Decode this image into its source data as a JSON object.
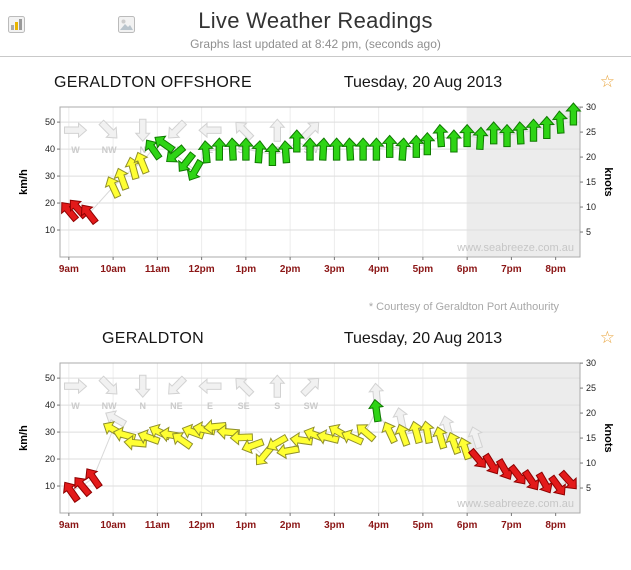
{
  "header": {
    "title": "Live Weather Readings",
    "subtitle": "Graphs last updated at 8:42 pm, (seconds ago)"
  },
  "icons": {
    "favorite_star": "☆",
    "mini_icon_1": "mini-chart-icon",
    "mini_icon_2": "mini-photo-icon"
  },
  "notes": {
    "courtesy": "* Courtesy of Geraldton Port Authourity"
  },
  "style": {
    "accent_star": "#e9a53f",
    "shade": "#ececec",
    "grid_h": "#dedede",
    "grid_v": "#ececec",
    "border": "#ababab",
    "trend_line": "#d9d9d9",
    "tick": "#777777",
    "arrow_colors": {
      "red": {
        "fill": "#e31a1a",
        "stroke": "#8f0000"
      },
      "yellow": {
        "fill": "#ffff33",
        "stroke": "#90902a"
      },
      "green": {
        "fill": "#2ed415",
        "stroke": "#0f7a00"
      },
      "ghost": {
        "fill": "#f1f1f1",
        "stroke": "#d2d2d2"
      }
    }
  },
  "chart_data": [
    {
      "type": "scatter",
      "subtype": "wind-speed-direction-arrows",
      "title": "GERALDTON OFFSHORE",
      "date": "Tuesday, 20 Aug 2013",
      "ylabel_left": "km/h",
      "ylabel_right": "knots",
      "ylim_kmh": [
        0,
        55.6
      ],
      "y_ticks_kmh": [
        10,
        20,
        30,
        40,
        50
      ],
      "y_ticks_knots": [
        5,
        10,
        15,
        20,
        25,
        30
      ],
      "xlim": [
        8.8,
        20.55
      ],
      "x_ticks": [
        [
          9,
          "9am"
        ],
        [
          10,
          "10am"
        ],
        [
          11,
          "11am"
        ],
        [
          12,
          "12pm"
        ],
        [
          13,
          "1pm"
        ],
        [
          14,
          "2pm"
        ],
        [
          15,
          "3pm"
        ],
        [
          16,
          "4pm"
        ],
        [
          17,
          "5pm"
        ],
        [
          18,
          "6pm"
        ],
        [
          19,
          "7pm"
        ],
        [
          20,
          "8pm"
        ]
      ],
      "shaded_from": 18,
      "legend_kmh": 47,
      "compass_legend_format": [
        "direction_label",
        "hour",
        "arrow_rotation_deg"
      ],
      "compass_legend": [
        [
          "W",
          9.15,
          90
        ],
        [
          "NW",
          9.91,
          135
        ],
        [
          "N",
          10.67,
          180
        ],
        [
          "NE",
          11.43,
          225
        ],
        [
          "E",
          12.19,
          270
        ],
        [
          "SE",
          12.95,
          315
        ],
        [
          "S",
          13.71,
          0
        ],
        [
          "SW",
          14.47,
          45
        ]
      ],
      "point_format": [
        "hour",
        "kmh",
        "arrow_rotation_deg",
        "color"
      ],
      "points": [
        [
          9.0,
          17,
          -40,
          "red"
        ],
        [
          9.2,
          18,
          -42,
          "red"
        ],
        [
          9.45,
          16,
          -38,
          "red"
        ],
        [
          10.0,
          26,
          -25,
          "yellow"
        ],
        [
          10.2,
          29,
          -20,
          "yellow"
        ],
        [
          10.45,
          33,
          -15,
          "yellow"
        ],
        [
          10.65,
          35,
          -22,
          "yellow"
        ],
        [
          10.9,
          40,
          -35,
          "green"
        ],
        [
          11.15,
          42,
          -55,
          "green"
        ],
        [
          11.4,
          38,
          -130,
          "green"
        ],
        [
          11.65,
          35,
          -142,
          "green"
        ],
        [
          11.85,
          32,
          -150,
          "green"
        ],
        [
          12.1,
          39,
          -5,
          "green"
        ],
        [
          12.4,
          40,
          0,
          "green"
        ],
        [
          12.7,
          40,
          -3,
          "green"
        ],
        [
          13.0,
          40,
          0,
          "green"
        ],
        [
          13.3,
          39,
          4,
          "green"
        ],
        [
          13.6,
          38,
          0,
          "green"
        ],
        [
          13.9,
          39,
          -4,
          "green"
        ],
        [
          14.15,
          43,
          0,
          "green"
        ],
        [
          14.45,
          40,
          0,
          "green"
        ],
        [
          14.75,
          40,
          3,
          "green"
        ],
        [
          15.05,
          40,
          0,
          "green"
        ],
        [
          15.35,
          40,
          -3,
          "green"
        ],
        [
          15.65,
          40,
          0,
          "green"
        ],
        [
          15.95,
          40,
          0,
          "green"
        ],
        [
          16.25,
          41,
          0,
          "green"
        ],
        [
          16.55,
          40,
          4,
          "green"
        ],
        [
          16.85,
          41,
          0,
          "green"
        ],
        [
          17.1,
          42,
          0,
          "green"
        ],
        [
          17.4,
          45,
          -4,
          "green"
        ],
        [
          17.7,
          43,
          0,
          "green"
        ],
        [
          18.0,
          45,
          0,
          "green"
        ],
        [
          18.3,
          44,
          3,
          "green"
        ],
        [
          18.6,
          46,
          0,
          "green"
        ],
        [
          18.9,
          45,
          0,
          "green"
        ],
        [
          19.2,
          46,
          -3,
          "green"
        ],
        [
          19.5,
          47,
          0,
          "green"
        ],
        [
          19.8,
          48,
          0,
          "green"
        ],
        [
          20.1,
          50,
          -4,
          "green"
        ],
        [
          20.4,
          53,
          0,
          "green"
        ]
      ],
      "ghost_points": [],
      "watermark": "www.seabreeze.com.au"
    },
    {
      "type": "scatter",
      "subtype": "wind-speed-direction-arrows",
      "title": "GERALDTON",
      "date": "Tuesday, 20 Aug 2013",
      "ylabel_left": "km/h",
      "ylabel_right": "knots",
      "ylim_kmh": [
        0,
        55.6
      ],
      "y_ticks_kmh": [
        10,
        20,
        30,
        40,
        50
      ],
      "y_ticks_knots": [
        5,
        10,
        15,
        20,
        25,
        30
      ],
      "xlim": [
        8.8,
        20.55
      ],
      "x_ticks": [
        [
          9,
          "9am"
        ],
        [
          10,
          "10am"
        ],
        [
          11,
          "11am"
        ],
        [
          12,
          "12pm"
        ],
        [
          13,
          "1pm"
        ],
        [
          14,
          "2pm"
        ],
        [
          15,
          "3pm"
        ],
        [
          16,
          "4pm"
        ],
        [
          17,
          "5pm"
        ],
        [
          18,
          "6pm"
        ],
        [
          19,
          "7pm"
        ],
        [
          20,
          "8pm"
        ]
      ],
      "shaded_from": 18,
      "legend_kmh": 47,
      "compass_legend_format": [
        "direction_label",
        "hour",
        "arrow_rotation_deg"
      ],
      "compass_legend": [
        [
          "W",
          9.15,
          90
        ],
        [
          "NW",
          9.91,
          135
        ],
        [
          "N",
          10.67,
          180
        ],
        [
          "NE",
          11.43,
          225
        ],
        [
          "E",
          12.19,
          270
        ],
        [
          "SE",
          12.95,
          315
        ],
        [
          "S",
          13.71,
          0
        ],
        [
          "SW",
          14.47,
          45
        ]
      ],
      "point_format": [
        "hour",
        "kmh",
        "arrow_rotation_deg",
        "color"
      ],
      "points": [
        [
          9.05,
          8,
          -35,
          "red"
        ],
        [
          9.3,
          10,
          -40,
          "red"
        ],
        [
          9.55,
          13,
          -35,
          "red"
        ],
        [
          10.0,
          31,
          -60,
          "yellow"
        ],
        [
          10.25,
          29,
          -75,
          "yellow"
        ],
        [
          10.5,
          26,
          -85,
          "yellow"
        ],
        [
          10.8,
          28,
          -70,
          "yellow"
        ],
        [
          11.05,
          30,
          -65,
          "yellow"
        ],
        [
          11.3,
          29,
          -80,
          "yellow"
        ],
        [
          11.55,
          27,
          -55,
          "yellow"
        ],
        [
          11.8,
          30,
          -70,
          "yellow"
        ],
        [
          12.05,
          31,
          -78,
          "yellow"
        ],
        [
          12.3,
          32,
          -95,
          "yellow"
        ],
        [
          12.6,
          30,
          -85,
          "yellow"
        ],
        [
          12.9,
          28,
          -92,
          "yellow"
        ],
        [
          13.15,
          25,
          -110,
          "yellow"
        ],
        [
          13.4,
          21,
          -140,
          "yellow"
        ],
        [
          13.7,
          26,
          -120,
          "yellow"
        ],
        [
          13.95,
          23,
          -100,
          "yellow"
        ],
        [
          14.25,
          27,
          -82,
          "yellow"
        ],
        [
          14.55,
          29,
          -70,
          "yellow"
        ],
        [
          14.85,
          28,
          -76,
          "yellow"
        ],
        [
          15.1,
          30,
          -60,
          "yellow"
        ],
        [
          15.4,
          28,
          -66,
          "yellow"
        ],
        [
          15.7,
          30,
          -50,
          "yellow"
        ],
        [
          15.95,
          38,
          -8,
          "green"
        ],
        [
          16.25,
          30,
          -25,
          "yellow"
        ],
        [
          16.55,
          29,
          -20,
          "yellow"
        ],
        [
          16.85,
          30,
          -15,
          "yellow"
        ],
        [
          17.1,
          30,
          -10,
          "yellow"
        ],
        [
          17.4,
          28,
          -16,
          "yellow"
        ],
        [
          17.7,
          26,
          -20,
          "yellow"
        ],
        [
          17.95,
          24,
          -18,
          "yellow"
        ],
        [
          18.25,
          20,
          140,
          "red"
        ],
        [
          18.55,
          18,
          148,
          "red"
        ],
        [
          18.85,
          16,
          150,
          "red"
        ],
        [
          19.15,
          14,
          142,
          "red"
        ],
        [
          19.45,
          12,
          146,
          "red"
        ],
        [
          19.75,
          11,
          150,
          "red"
        ],
        [
          20.05,
          10,
          144,
          "red"
        ],
        [
          20.3,
          12,
          138,
          "red"
        ]
      ],
      "ghost_point_format": [
        "hour",
        "kmh",
        "arrow_rotation_deg"
      ],
      "ghost_points": [
        [
          10.05,
          35,
          -60
        ],
        [
          15.95,
          44,
          -5
        ],
        [
          16.5,
          35,
          -12
        ],
        [
          17.55,
          32,
          -14
        ],
        [
          18.2,
          28,
          -18
        ]
      ],
      "watermark": "www.seabreeze.com.au"
    }
  ]
}
